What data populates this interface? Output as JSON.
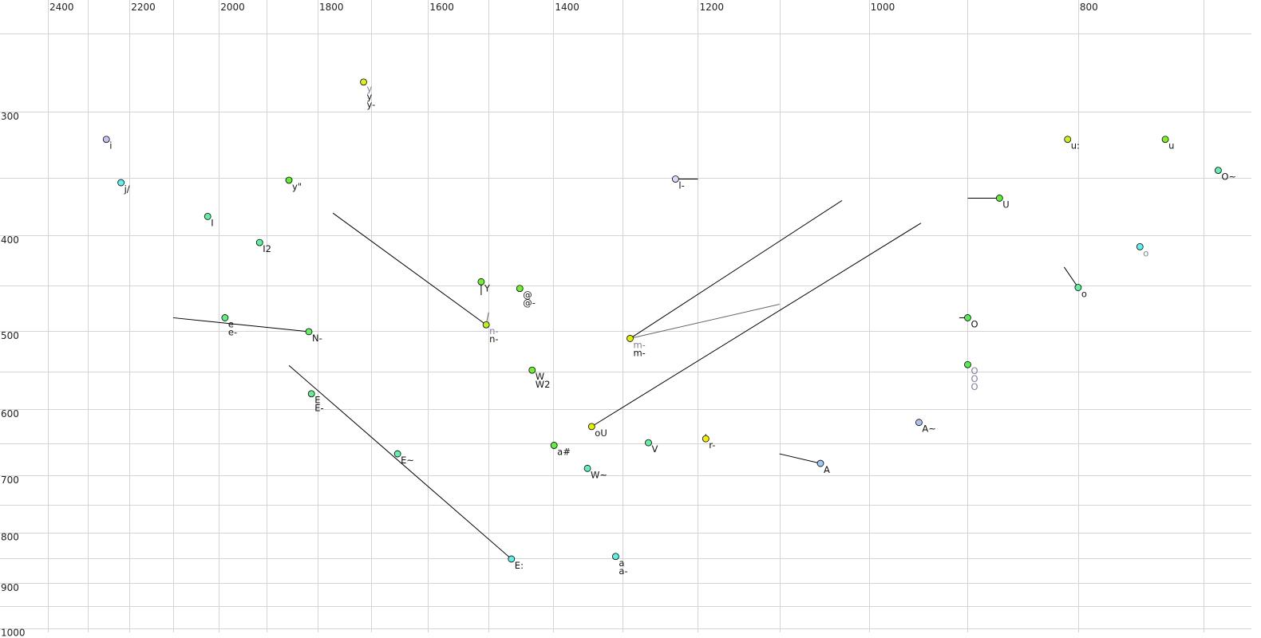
{
  "chart_data": {
    "type": "scatter",
    "title": "",
    "xlabel": "",
    "ylabel": "",
    "x_scale": "log",
    "x_reversed": true,
    "y_scale": "log",
    "y_reversed": true,
    "xlim": [
      2526,
      658
    ],
    "ylim": [
      231,
      1023
    ],
    "x_gridlines": [
      2400,
      2300,
      2200,
      2100,
      2000,
      1900,
      1800,
      1700,
      1600,
      1500,
      1400,
      1300,
      1200,
      1100,
      1000,
      900,
      800,
      700
    ],
    "y_gridlines": [
      250,
      300,
      350,
      400,
      450,
      500,
      550,
      600,
      650,
      700,
      750,
      800,
      850,
      900,
      950,
      1000
    ],
    "x_tick_labels": [
      "2400",
      "2200",
      "2000",
      "1800",
      "1600",
      "1400",
      "1200",
      "1000",
      "800"
    ],
    "y_tick_labels": [
      "300",
      "400",
      "500",
      "600",
      "700",
      "800",
      "900",
      "1000"
    ],
    "grid": true,
    "points": [
      {
        "x": 2255,
        "y": 320,
        "color": "#c8c0f0",
        "labels": [
          {
            "t": "i"
          }
        ]
      },
      {
        "x": 2220,
        "y": 354,
        "color": "#60f0f0",
        "labels": [
          {
            "t": "j/"
          }
        ]
      },
      {
        "x": 1714,
        "y": 280,
        "color": "#d8f020",
        "labels": [
          {
            "t": "y",
            "grey": true
          },
          {
            "t": "y"
          },
          {
            "t": "y-"
          }
        ]
      },
      {
        "x": 1856,
        "y": 352,
        "color": "#60f030",
        "labels": [
          {
            "t": "y\""
          }
        ]
      },
      {
        "x": 2024,
        "y": 383,
        "color": "#60f0a0",
        "labels": [
          {
            "t": "I"
          }
        ]
      },
      {
        "x": 1915,
        "y": 407,
        "color": "#60f0a0",
        "labels": [
          {
            "t": "I2"
          }
        ]
      },
      {
        "x": 1987,
        "y": 485,
        "color": "#60f080",
        "labels": [
          {
            "t": "e"
          },
          {
            "t": "e-"
          }
        ]
      },
      {
        "x": 1817,
        "y": 501,
        "color": "#60f060",
        "labels": [
          {
            "t": "N-"
          }
        ]
      },
      {
        "x": 1512,
        "y": 446,
        "color": "#70f030",
        "labels": [
          {
            "t": "Y"
          }
        ]
      },
      {
        "x": 1451,
        "y": 453,
        "color": "#70f030",
        "labels": [
          {
            "t": "@"
          },
          {
            "t": "@-"
          }
        ]
      },
      {
        "x": 1504,
        "y": 493,
        "color": "#b8f020",
        "labels": [
          {
            "t": "n-",
            "grey": true
          },
          {
            "t": "n-"
          }
        ]
      },
      {
        "x": 1290,
        "y": 509,
        "color": "#e0f000",
        "labels": [
          {
            "t": "m-",
            "grey": true
          },
          {
            "t": "m-"
          }
        ]
      },
      {
        "x": 1229,
        "y": 351,
        "color": "#d8d8f8",
        "labels": [
          {
            "t": "l-"
          }
        ]
      },
      {
        "x": 1432,
        "y": 548,
        "color": "#70f030",
        "labels": [
          {
            "t": "W"
          },
          {
            "t": "W2"
          }
        ]
      },
      {
        "x": 1812,
        "y": 579,
        "color": "#60f090",
        "labels": [
          {
            "t": "E"
          },
          {
            "t": "E-"
          }
        ]
      },
      {
        "x": 1653,
        "y": 666,
        "color": "#60f0b0",
        "labels": [
          {
            "t": "E~"
          }
        ]
      },
      {
        "x": 1464,
        "y": 851,
        "color": "#60f0e0",
        "labels": [
          {
            "t": "E:"
          }
        ]
      },
      {
        "x": 1344,
        "y": 625,
        "color": "#e0f000",
        "labels": [
          {
            "t": "oU"
          }
        ]
      },
      {
        "x": 1399,
        "y": 653,
        "color": "#60f040",
        "labels": [
          {
            "t": "a#"
          }
        ]
      },
      {
        "x": 1350,
        "y": 689,
        "color": "#60f0c0",
        "labels": [
          {
            "t": "W~"
          }
        ]
      },
      {
        "x": 1265,
        "y": 649,
        "color": "#60f0a0",
        "labels": [
          {
            "t": "V"
          }
        ]
      },
      {
        "x": 1190,
        "y": 643,
        "color": "#f0f000",
        "labels": [
          {
            "t": "r-"
          }
        ]
      },
      {
        "x": 1310,
        "y": 846,
        "color": "#60f0e0",
        "labels": [
          {
            "t": "a"
          },
          {
            "t": "a-"
          }
        ]
      },
      {
        "x": 1053,
        "y": 681,
        "color": "#a0c8f0",
        "labels": [
          {
            "t": "A"
          }
        ]
      },
      {
        "x": 948,
        "y": 619,
        "color": "#b0c0f0",
        "labels": [
          {
            "t": "A~"
          }
        ]
      },
      {
        "x": 870,
        "y": 367,
        "color": "#60f030",
        "labels": [
          {
            "t": "U"
          }
        ]
      },
      {
        "x": 809,
        "y": 320,
        "color": "#c8f020",
        "labels": [
          {
            "t": "u:"
          }
        ]
      },
      {
        "x": 729,
        "y": 320,
        "color": "#80f020",
        "labels": [
          {
            "t": "u"
          }
        ]
      },
      {
        "x": 689,
        "y": 344,
        "color": "#60f0b0",
        "labels": [
          {
            "t": "O~"
          }
        ]
      },
      {
        "x": 749,
        "y": 411,
        "color": "#60f0f0",
        "labels": [
          {
            "t": "o",
            "grey": true
          }
        ]
      },
      {
        "x": 800,
        "y": 452,
        "color": "#60f0a0",
        "labels": [
          {
            "t": "o"
          }
        ]
      },
      {
        "x": 900,
        "y": 485,
        "color": "#50f050",
        "labels": [
          {
            "t": "O"
          }
        ]
      },
      {
        "x": 900,
        "y": 541,
        "color": "#50f050",
        "labels": [
          {
            "t": "O",
            "grey": true
          },
          {
            "t": "O",
            "grey": true
          },
          {
            "t": "O",
            "grey": true
          }
        ]
      }
    ],
    "trajectories": [
      {
        "from": [
          2100,
          485
        ],
        "to": [
          1817,
          501
        ]
      },
      {
        "from": [
          1771,
          380
        ],
        "to": [
          1504,
          493
        ]
      },
      {
        "from": [
          1504,
          493
        ],
        "to": [
          1500,
          479
        ],
        "grey": true
      },
      {
        "from": [
          1290,
          509
        ],
        "to": [
          1029,
          369
        ]
      },
      {
        "from": [
          1290,
          509
        ],
        "to": [
          1100,
          470
        ],
        "grey": true
      },
      {
        "from": [
          1229,
          351
        ],
        "to": [
          1200,
          351
        ]
      },
      {
        "from": [
          1856,
          542
        ],
        "to": [
          1464,
          851
        ]
      },
      {
        "from": [
          1344,
          625
        ],
        "to": [
          946,
          389
        ]
      },
      {
        "from": [
          1100,
          666
        ],
        "to": [
          1053,
          681
        ]
      },
      {
        "from": [
          900,
          367
        ],
        "to": [
          870,
          367
        ]
      },
      {
        "from": [
          812,
          431
        ],
        "to": [
          800,
          452
        ]
      },
      {
        "from": [
          908,
          485
        ],
        "to": [
          900,
          485
        ]
      },
      {
        "from": [
          1512,
          446
        ],
        "to": [
          1512,
          460
        ]
      },
      {
        "from": [
          1190,
          643
        ],
        "to": [
          1190,
          636
        ]
      }
    ]
  }
}
